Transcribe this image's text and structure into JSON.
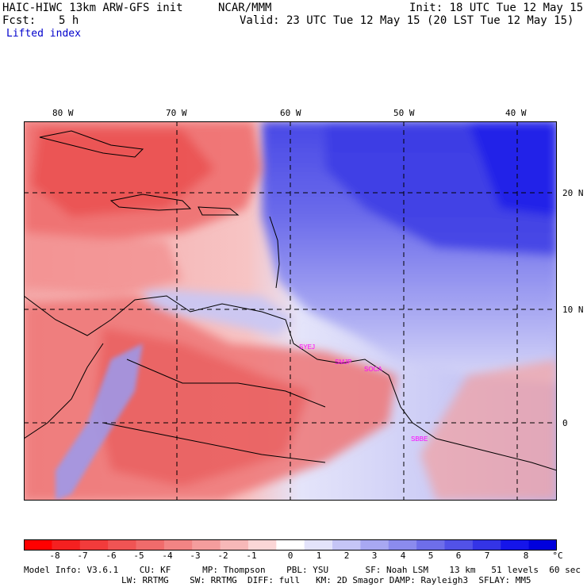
{
  "header": {
    "model": "HAIC-HIWC 13km ARW-GFS init",
    "org": "NCAR/MMM",
    "init": "Init: 18 UTC Tue 12 May 15",
    "fcst_label": "Fcst:",
    "fcst_value": "5 h",
    "valid": "Valid: 23 UTC Tue 12 May 15 (20 LST Tue 12 May 15)",
    "field": "Lifted index"
  },
  "map": {
    "lon_labels": [
      "80 W",
      "70 W",
      "60 W",
      "50 W",
      "40 W"
    ],
    "lat_labels": [
      "20 N",
      "10 N",
      "0"
    ],
    "stations": [
      "SYEJ",
      "SMJP",
      "SOCA",
      "SBBE"
    ],
    "station_color": "#ff00ff",
    "regions": {
      "northwest": "unstable (negative LI, red)",
      "northeast_atlantic": "stable (positive LI, blue)",
      "south_america": "unstable (negative LI, red)"
    }
  },
  "colorbar": {
    "labels": [
      "-8",
      "-7",
      "-6",
      "-5",
      "-4",
      "-3",
      "-2",
      "-1",
      "0",
      "1",
      "2",
      "3",
      "4",
      "5",
      "6",
      "7",
      "8"
    ],
    "unit": "°C",
    "colors": [
      "#ff0000",
      "#f52020",
      "#f23b3b",
      "#f05454",
      "#f06b6b",
      "#f28484",
      "#f49d9d",
      "#f7b8b8",
      "#fbd6d6",
      "#ffffff",
      "#e3e3fb",
      "#c5c5f6",
      "#a8a8f2",
      "#8b8bee",
      "#6e6eea",
      "#5252e8",
      "#3434e6",
      "#1515ea",
      "#0000dd"
    ]
  },
  "footer": {
    "line1": "Model Info: V3.6.1    CU: KF      MP: Thompson    PBL: YSU       SF: Noah LSM    13 km   51 levels  60 sec",
    "line2": "LW: RRTMG    SW: RRTMG  DIFF: full   KM: 2D Smagor DAMP: Rayleigh3  SFLAY: MM5"
  }
}
